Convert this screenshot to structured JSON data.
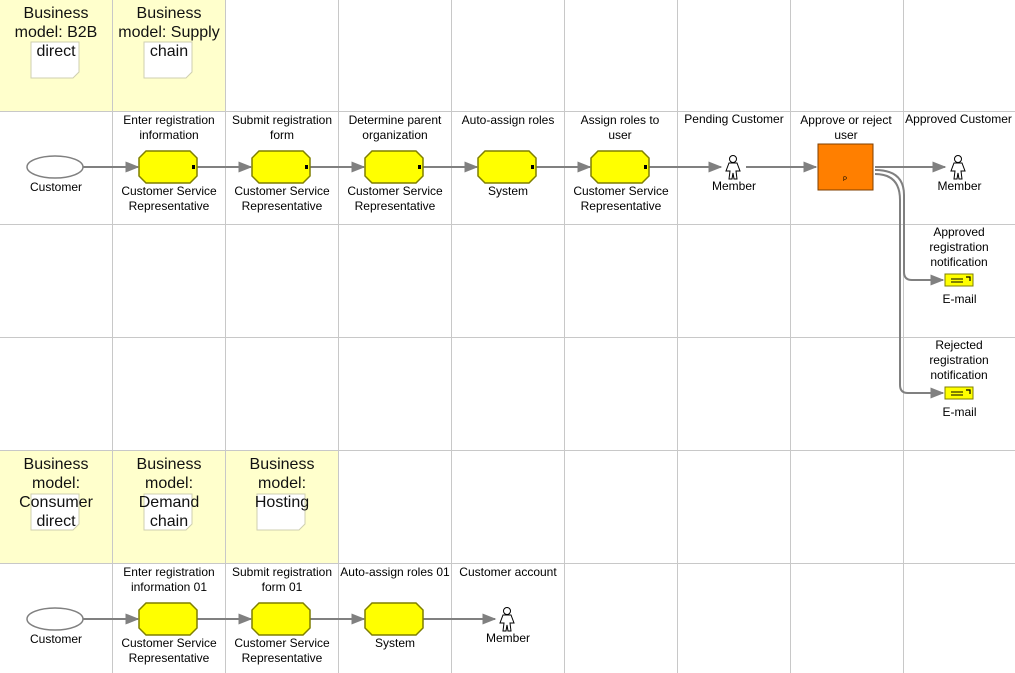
{
  "colors": {
    "grid": "#c8c8c8",
    "business_model_fill": "#ffffcc",
    "function_fill": "#ffff00",
    "function_border": "#7f7f00",
    "decision_fill": "#ff7f00",
    "connector": "#808080"
  },
  "business_models": {
    "b2b_direct": "Business model: B2B direct",
    "supply_chain": "Business model: Supply chain",
    "consumer_direct": "Business model: Consumer direct",
    "demand_chain": "Business model: Demand chain",
    "hosting": "Business model: Hosting"
  },
  "flow1": {
    "start_event": "Customer",
    "f1_name": "Enter registration information",
    "f1_role": "Customer Service Representative",
    "f2_name": "Submit registration form",
    "f2_role": "Customer Service Representative",
    "f3_name": "Determine parent organization",
    "f3_role": "Customer Service Representative",
    "f4_name": "Auto-assign roles",
    "f4_role": "System",
    "f5_name": "Assign roles to user",
    "f5_role": "Customer Service Representative",
    "pending_title": "Pending Customer",
    "pending_member": "Member",
    "decision_name": "Approve or reject user",
    "decision_marker": "P",
    "approved_title": "Approved Customer",
    "approved_member": "Member",
    "notif_approved_title": "Approved registration notification",
    "notif_approved_channel": "E-mail",
    "notif_rejected_title": "Rejected registration notification",
    "notif_rejected_channel": "E-mail"
  },
  "flow2": {
    "start_event": "Customer",
    "f1_name": "Enter registration information 01",
    "f1_role": "Customer Service Representative",
    "f2_name": "Submit registration form 01",
    "f2_role": "Customer Service Representative",
    "f3_name": "Auto-assign roles 01",
    "f3_role": "System",
    "account_title": "Customer account",
    "account_member": "Member"
  }
}
